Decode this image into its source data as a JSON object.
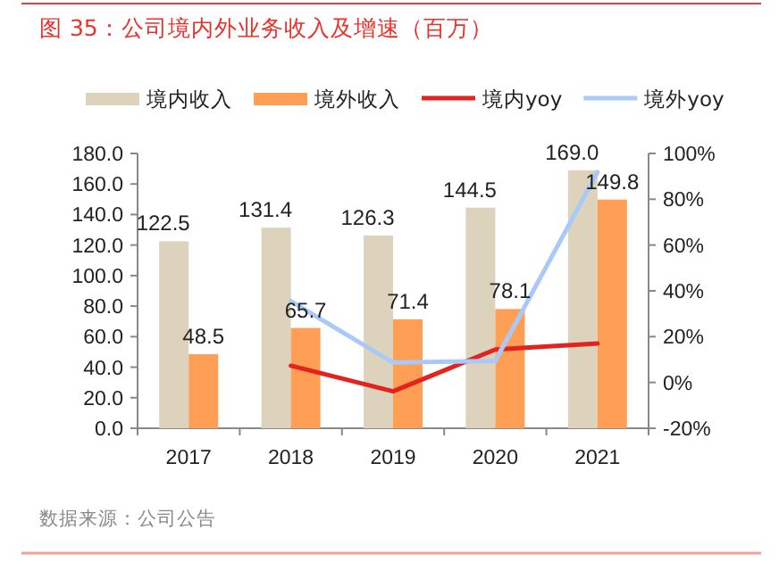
{
  "chart_data": {
    "type": "bar",
    "title": "图 35：公司境内外业务收入及增速（百万）",
    "annotations": [
      "数据来源：公司公告"
    ],
    "categories": [
      "2017",
      "2018",
      "2019",
      "2020",
      "2021"
    ],
    "series": [
      {
        "name": "境内收入",
        "color": "#ddd3bd",
        "values": [
          122.5,
          131.4,
          126.3,
          144.5,
          169.0
        ],
        "value_labels": [
          "122.5",
          "131.4",
          "126.3",
          "144.5",
          "169.0"
        ]
      },
      {
        "name": "境外收入",
        "color": "#ff9f55",
        "values": [
          48.5,
          65.7,
          71.4,
          78.1,
          149.8
        ],
        "value_labels": [
          "48.5",
          "65.7",
          "71.4",
          "78.1",
          "149.8"
        ]
      },
      {
        "name": "境内yoy",
        "type": "line",
        "axis": "y2",
        "color": "#e3231e",
        "values": [
          null,
          7.3,
          -3.9,
          14.4,
          17.0
        ]
      },
      {
        "name": "境外yoy",
        "type": "line",
        "axis": "y2",
        "color": "#a9c9f9",
        "values": [
          null,
          35.5,
          8.7,
          9.4,
          91.8
        ]
      }
    ],
    "legend": "top",
    "grid": false,
    "ylim": [
      0,
      180
    ],
    "yticks": [
      {
        "value": 0,
        "label": "0.0"
      },
      {
        "value": 20,
        "label": "20.0"
      },
      {
        "value": 40,
        "label": "40.0"
      },
      {
        "value": 60,
        "label": "60.0"
      },
      {
        "value": 80,
        "label": "80.0"
      },
      {
        "value": 100,
        "label": "100.0"
      },
      {
        "value": 120,
        "label": "120.0"
      },
      {
        "value": 140,
        "label": "140.0"
      },
      {
        "value": 160,
        "label": "160.0"
      },
      {
        "value": 180,
        "label": "180.0"
      }
    ],
    "y2lim": [
      -20,
      100
    ],
    "y2ticks": [
      {
        "value": -20,
        "label": "-20%"
      },
      {
        "value": 0,
        "label": "0%"
      },
      {
        "value": 20,
        "label": "20%"
      },
      {
        "value": 40,
        "label": "40%"
      },
      {
        "value": 60,
        "label": "60%"
      },
      {
        "value": 80,
        "label": "80%"
      },
      {
        "value": 100,
        "label": "100%"
      }
    ]
  }
}
